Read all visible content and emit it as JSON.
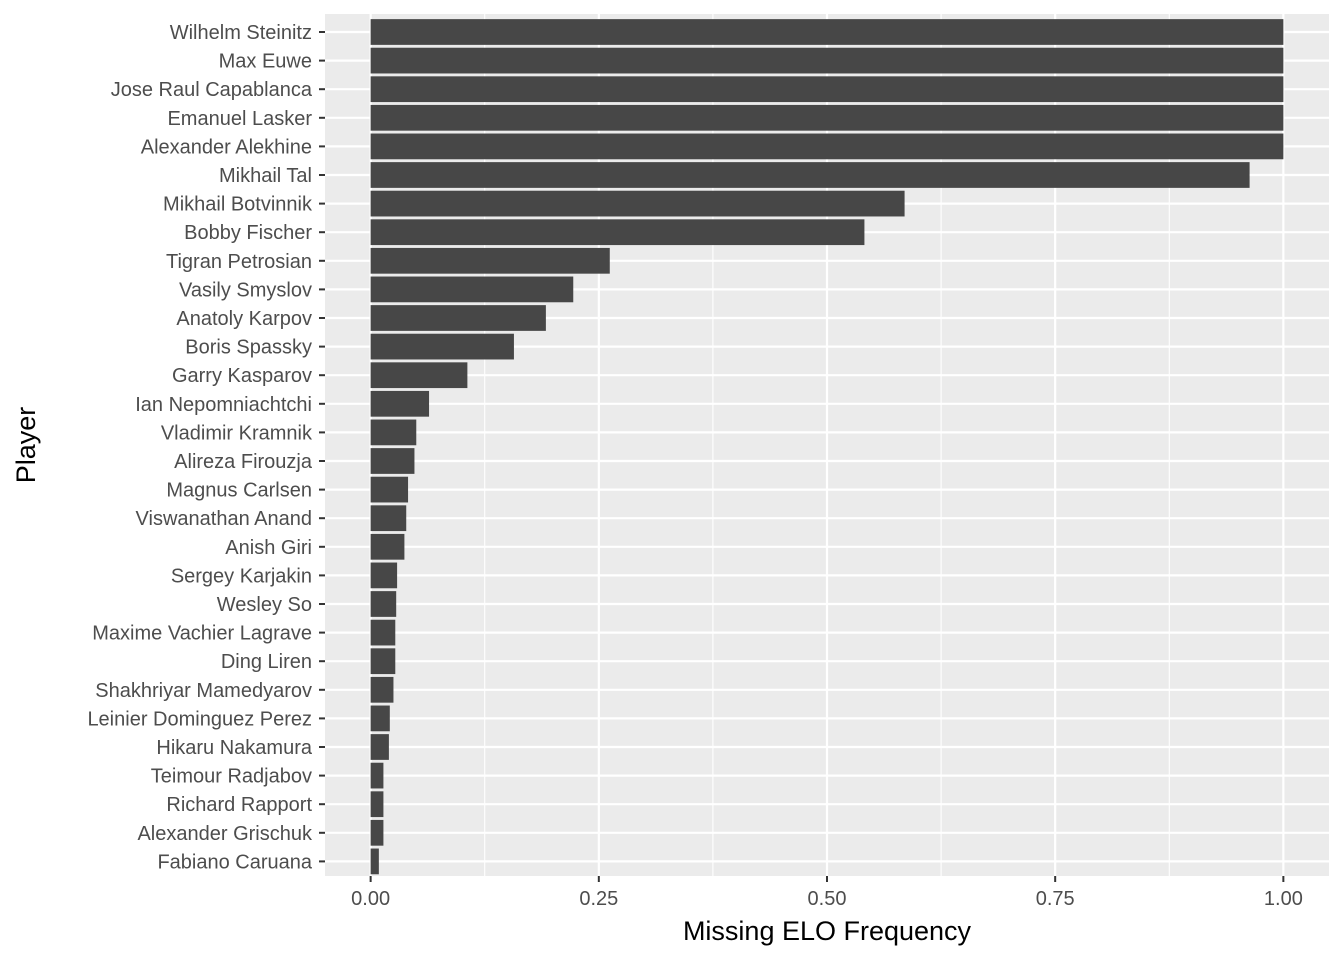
{
  "chart_data": {
    "type": "bar",
    "orientation": "horizontal",
    "xlabel": "Missing ELO Frequency",
    "ylabel": "Player",
    "xlim": [
      -0.05,
      1.05
    ],
    "x_ticks": [
      0,
      0.25,
      0.5,
      0.75,
      1
    ],
    "x_tick_labels": [
      "0.00",
      "0.25",
      "0.50",
      "0.75",
      "1.00"
    ],
    "grid": true,
    "colors": {
      "panel": "#ebebeb",
      "bar": "#474747",
      "grid": "#ffffff",
      "tick_text": "#4d4d4d",
      "tick_mark": "#333333"
    },
    "categories": [
      "Wilhelm Steinitz",
      "Max Euwe",
      "Jose Raul Capablanca",
      "Emanuel Lasker",
      "Alexander Alekhine",
      "Mikhail Tal",
      "Mikhail Botvinnik",
      "Bobby Fischer",
      "Tigran Petrosian",
      "Vasily Smyslov",
      "Anatoly Karpov",
      "Boris Spassky",
      "Garry Kasparov",
      "Ian Nepomniachtchi",
      "Vladimir Kramnik",
      "Alireza Firouzja",
      "Magnus Carlsen",
      "Viswanathan Anand",
      "Anish Giri",
      "Sergey Karjakin",
      "Wesley So",
      "Maxime Vachier Lagrave",
      "Ding Liren",
      "Shakhriyar Mamedyarov",
      "Leinier Dominguez Perez",
      "Hikaru Nakamura",
      "Teimour Radjabov",
      "Richard Rapport",
      "Alexander Grischuk",
      "Fabiano Caruana"
    ],
    "values": [
      1.0,
      1.0,
      1.0,
      1.0,
      1.0,
      0.963,
      0.585,
      0.541,
      0.262,
      0.222,
      0.192,
      0.157,
      0.106,
      0.064,
      0.05,
      0.048,
      0.041,
      0.039,
      0.037,
      0.029,
      0.028,
      0.027,
      0.027,
      0.025,
      0.021,
      0.02,
      0.014,
      0.014,
      0.014,
      0.009
    ]
  }
}
